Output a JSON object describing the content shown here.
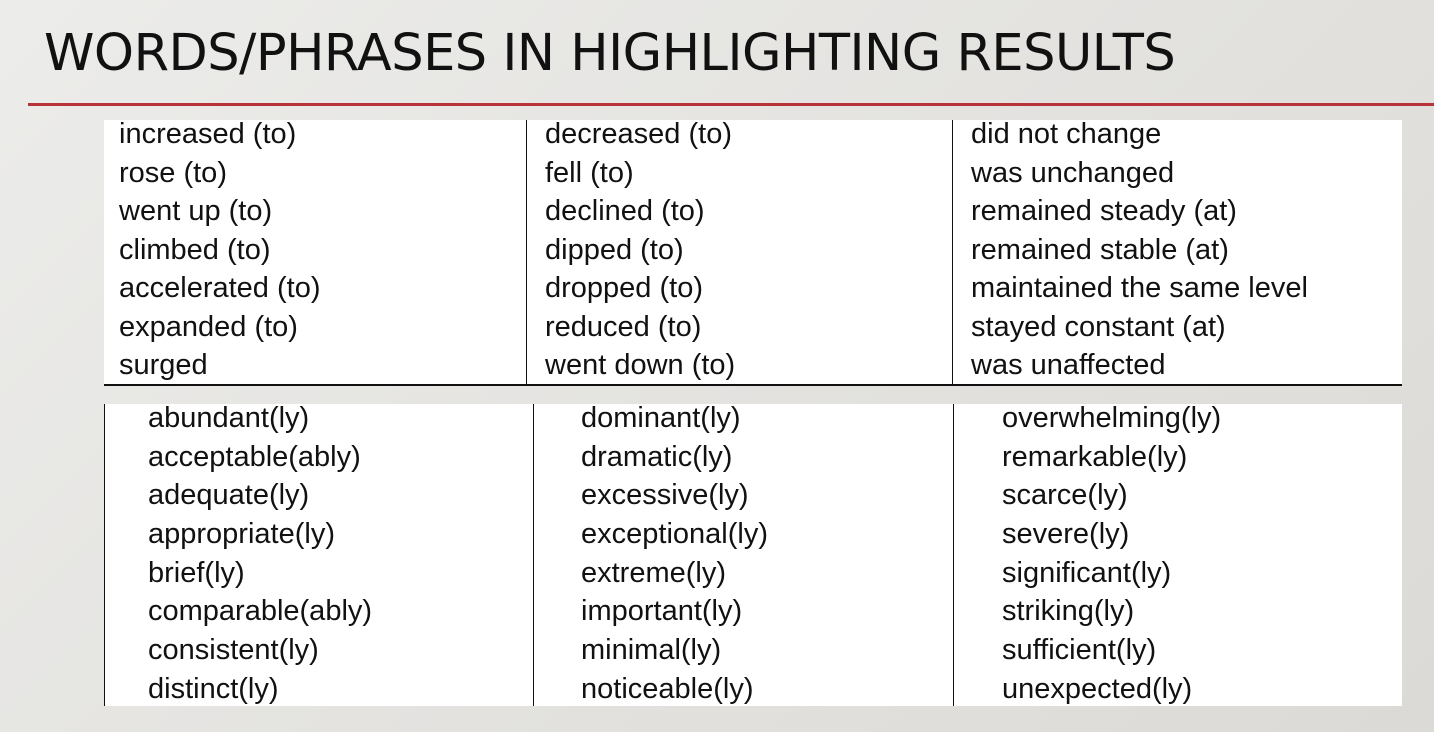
{
  "title": "WORDS/PHRASES IN HIGHLIGHTING RESULTS",
  "verb_table": {
    "columns": [
      [
        "increased (to)",
        "rose (to)",
        "went up (to)",
        "climbed (to)",
        "accelerated (to)",
        "expanded (to)",
        "surged"
      ],
      [
        "decreased (to)",
        "fell (to)",
        "declined (to)",
        "dipped (to)",
        "dropped (to)",
        "reduced (to)",
        "went down (to)"
      ],
      [
        "did not change",
        "was unchanged",
        "remained steady (at)",
        "remained stable (at)",
        "maintained the same level",
        "stayed constant (at)",
        "was unaffected"
      ]
    ]
  },
  "adverb_table": {
    "columns": [
      [
        "abundant(ly)",
        "acceptable(ably)",
        "adequate(ly)",
        "appropriate(ly)",
        "brief(ly)",
        "comparable(ably)",
        "consistent(ly)",
        "distinct(ly)"
      ],
      [
        "dominant(ly)",
        "dramatic(ly)",
        "excessive(ly)",
        "exceptional(ly)",
        "extreme(ly)",
        "important(ly)",
        "minimal(ly)",
        "noticeable(ly)"
      ],
      [
        "overwhelming(ly)",
        "remarkable(ly)",
        "scarce(ly)",
        "severe(ly)",
        "significant(ly)",
        "striking(ly)",
        "sufficient(ly)",
        "unexpected(ly)"
      ]
    ]
  },
  "colors": {
    "accent_rule": "#b8323a",
    "text": "#111111",
    "table_background": "#ffffff"
  }
}
